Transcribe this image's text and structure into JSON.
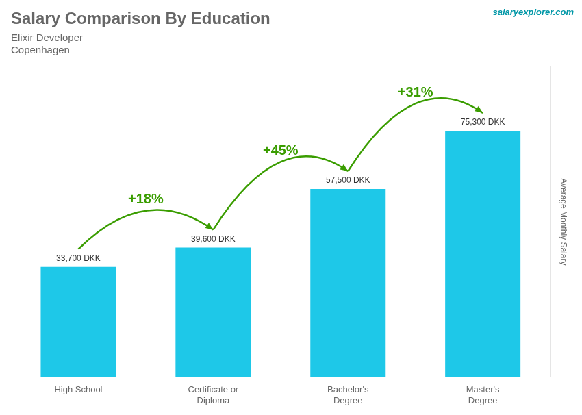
{
  "chart_data": {
    "type": "bar",
    "title": "Salary Comparison By Education",
    "subtitle": [
      "Elixir Developer",
      "Copenhagen"
    ],
    "ylabel": "Average Monthly Salary",
    "categories": [
      "High School",
      "Certificate or\nDiploma",
      "Bachelor's\nDegree",
      "Master's\nDegree"
    ],
    "values": [
      33700,
      39600,
      57500,
      75300
    ],
    "value_labels": [
      "33,700 DKK",
      "39,600 DKK",
      "57,500 DKK",
      "75,300 DKK"
    ],
    "data_labels": true,
    "annotations": [
      "+18%",
      "+45%",
      "+31%"
    ],
    "source": "salaryexplorer.com",
    "color": "#1EC8E8",
    "ylim": [
      0,
      95000
    ],
    "tick_labels": "x",
    "grid": false
  }
}
